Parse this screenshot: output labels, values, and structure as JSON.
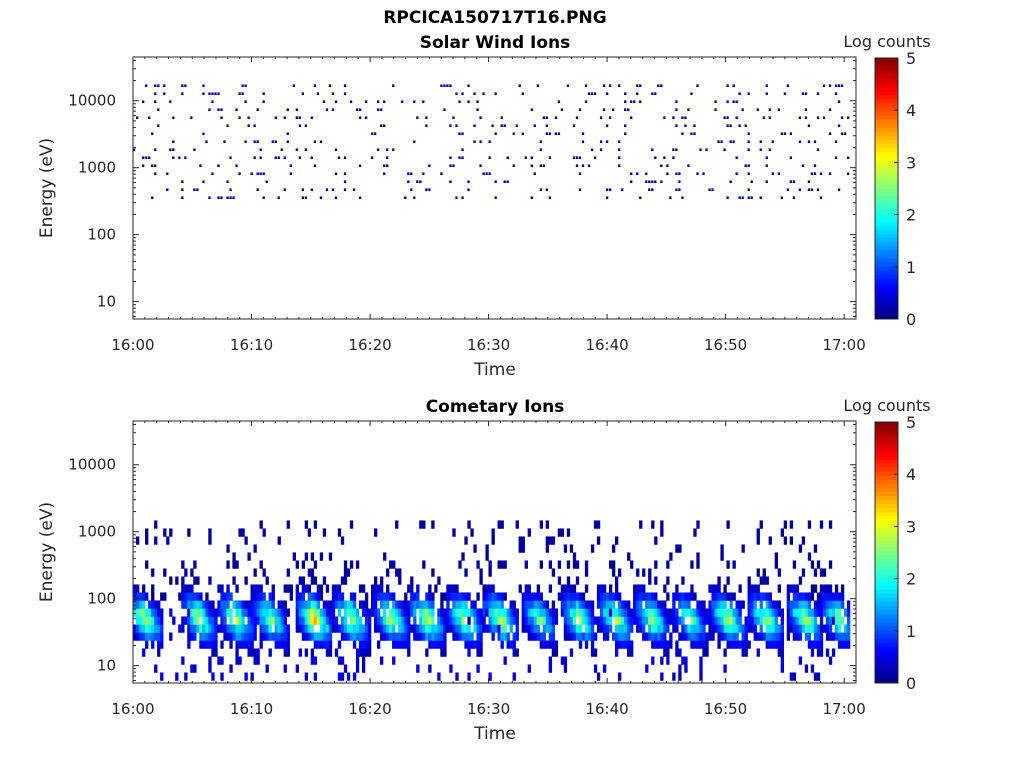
{
  "figure": {
    "title": "RPCICA150717T16.PNG"
  },
  "chart_data": [
    {
      "type": "heatmap",
      "title": "Solar Wind Ions",
      "xlabel": "Time",
      "ylabel": "Energy (eV)",
      "x_ticks": [
        "16:00",
        "16:10",
        "16:20",
        "16:30",
        "16:40",
        "16:50",
        "17:00"
      ],
      "x_range_minutes": [
        0,
        61
      ],
      "y_scale": "log",
      "y_range": [
        5.5,
        45000
      ],
      "y_ticks": [
        {
          "value": 10,
          "label": "10"
        },
        {
          "value": 100,
          "label": "100"
        },
        {
          "value": 1000,
          "label": "1000"
        },
        {
          "value": 10000,
          "label": "10000"
        }
      ],
      "colorbar": {
        "label": "Log counts",
        "range": [
          0,
          5
        ],
        "ticks": [
          "0",
          "1",
          "2",
          "3",
          "4",
          "5"
        ],
        "colormap": "jet"
      },
      "description_level": {
        "dominant_log_counts": 0.1,
        "energy_band": [
          300,
          20000
        ]
      }
    },
    {
      "type": "heatmap",
      "title": "Cometary Ions",
      "xlabel": "Time",
      "ylabel": "Energy (eV)",
      "x_ticks": [
        "16:00",
        "16:10",
        "16:20",
        "16:30",
        "16:40",
        "16:50",
        "17:00"
      ],
      "x_range_minutes": [
        0,
        61
      ],
      "y_scale": "log",
      "y_range": [
        5.5,
        45000
      ],
      "y_ticks": [
        {
          "value": 10,
          "label": "10"
        },
        {
          "value": 100,
          "label": "100"
        },
        {
          "value": 1000,
          "label": "1000"
        },
        {
          "value": 10000,
          "label": "10000"
        }
      ],
      "colorbar": {
        "label": "Log counts",
        "range": [
          0,
          5
        ],
        "ticks": [
          "0",
          "1",
          "2",
          "3",
          "4",
          "5"
        ],
        "colormap": "jet"
      },
      "bursts": [
        {
          "minute": 1.0,
          "peak_log": 3.4
        },
        {
          "minute": 5.6,
          "peak_log": 3.3
        },
        {
          "minute": 8.7,
          "peak_log": 3.4
        },
        {
          "minute": 11.6,
          "peak_log": 3.2
        },
        {
          "minute": 15.3,
          "peak_log": 4.1
        },
        {
          "minute": 18.4,
          "peak_log": 3.5
        },
        {
          "minute": 21.8,
          "peak_log": 3.4
        },
        {
          "minute": 24.8,
          "peak_log": 3.6
        },
        {
          "minute": 28.0,
          "peak_log": 3.5
        },
        {
          "minute": 31.0,
          "peak_log": 3.6
        },
        {
          "minute": 34.3,
          "peak_log": 2.9
        },
        {
          "minute": 37.6,
          "peak_log": 3.3
        },
        {
          "minute": 40.7,
          "peak_log": 3.4
        },
        {
          "minute": 43.8,
          "peak_log": 3.2
        },
        {
          "minute": 47.0,
          "peak_log": 3.0
        },
        {
          "minute": 50.2,
          "peak_log": 3.5
        },
        {
          "minute": 53.4,
          "peak_log": 3.3
        },
        {
          "minute": 56.7,
          "peak_log": 3.4
        },
        {
          "minute": 59.5,
          "peak_log": 3.1
        }
      ],
      "scatter_band": [
        100,
        1500
      ]
    }
  ]
}
